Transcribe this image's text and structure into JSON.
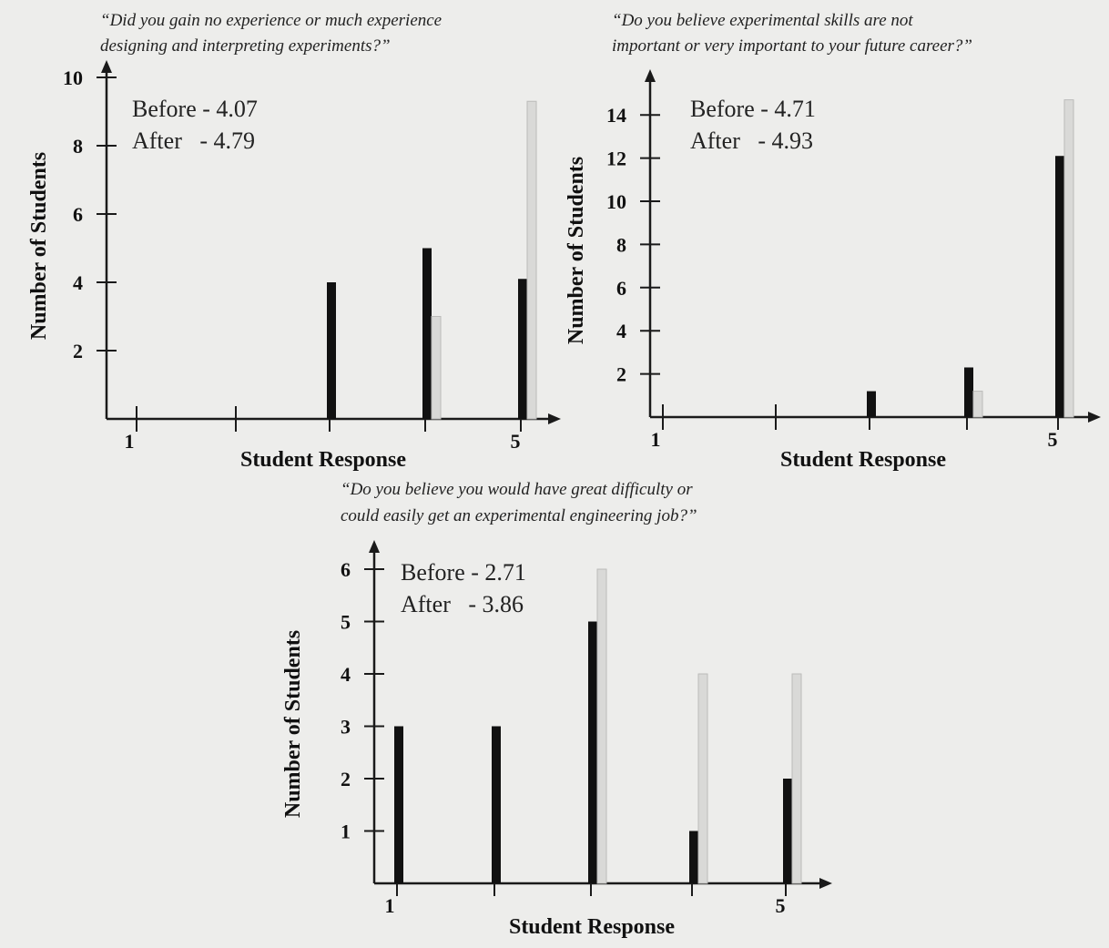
{
  "chart_data": [
    {
      "type": "bar",
      "title": "“Did you gain no experience or much experience designing and interpreting experiments?”",
      "title_lines": [
        "“Did you gain no experience or much experience",
        "designing and interpreting experiments?”"
      ],
      "xlabel": "Student Response",
      "ylabel": "Number of Students",
      "categories": [
        1,
        2,
        3,
        4,
        5
      ],
      "x_tick_labels": [
        "1",
        "",
        "",
        "",
        "5"
      ],
      "y_ticks": [
        2,
        4,
        6,
        8,
        10
      ],
      "ylim": [
        0,
        10
      ],
      "series": [
        {
          "name": "Before",
          "values": [
            0,
            0,
            4,
            5,
            4.1
          ],
          "color": "#111111"
        },
        {
          "name": "After",
          "values": [
            0,
            0,
            0,
            3,
            9.3
          ],
          "color": "#d9d9d7"
        }
      ],
      "annotations": [
        "Before - 4.07",
        "After   - 4.79"
      ]
    },
    {
      "type": "bar",
      "title": "“Do you believe experimental skills are not important or very important to your future career?”",
      "title_lines": [
        "“Do you believe experimental skills are not",
        "important or very important to your future career?”"
      ],
      "xlabel": "Student Response",
      "ylabel": "Number of Students",
      "categories": [
        1,
        2,
        3,
        4,
        5
      ],
      "x_tick_labels": [
        "1",
        "",
        "",
        "",
        "5"
      ],
      "y_ticks": [
        2,
        4,
        6,
        8,
        10,
        12,
        14
      ],
      "ylim": [
        0,
        14
      ],
      "series": [
        {
          "name": "Before",
          "values": [
            0,
            0,
            1.2,
            2.3,
            12.1
          ],
          "color": "#111111"
        },
        {
          "name": "After",
          "values": [
            0,
            0,
            0,
            1.2,
            14.7
          ],
          "color": "#d9d9d7"
        }
      ],
      "annotations": [
        "Before - 4.71",
        "After   - 4.93"
      ]
    },
    {
      "type": "bar",
      "title": "“Do you believe you would have great difficulty or could easily get an experimental engineering job?”",
      "title_lines": [
        "“Do you believe you would have great difficulty or",
        "could easily get an experimental engineering job?”"
      ],
      "xlabel": "Student Response",
      "ylabel": "Number of Students",
      "categories": [
        1,
        2,
        3,
        4,
        5
      ],
      "x_tick_labels": [
        "1",
        "",
        "",
        "",
        "5"
      ],
      "y_ticks": [
        1,
        2,
        3,
        4,
        5,
        6
      ],
      "ylim": [
        0,
        6
      ],
      "series": [
        {
          "name": "Before",
          "values": [
            3,
            3,
            5,
            1,
            2
          ],
          "color": "#111111"
        },
        {
          "name": "After",
          "values": [
            0,
            0,
            6,
            4,
            4
          ],
          "color": "#d9d9d7"
        }
      ],
      "annotations": [
        "Before - 2.71",
        "After   - 3.86"
      ]
    }
  ]
}
